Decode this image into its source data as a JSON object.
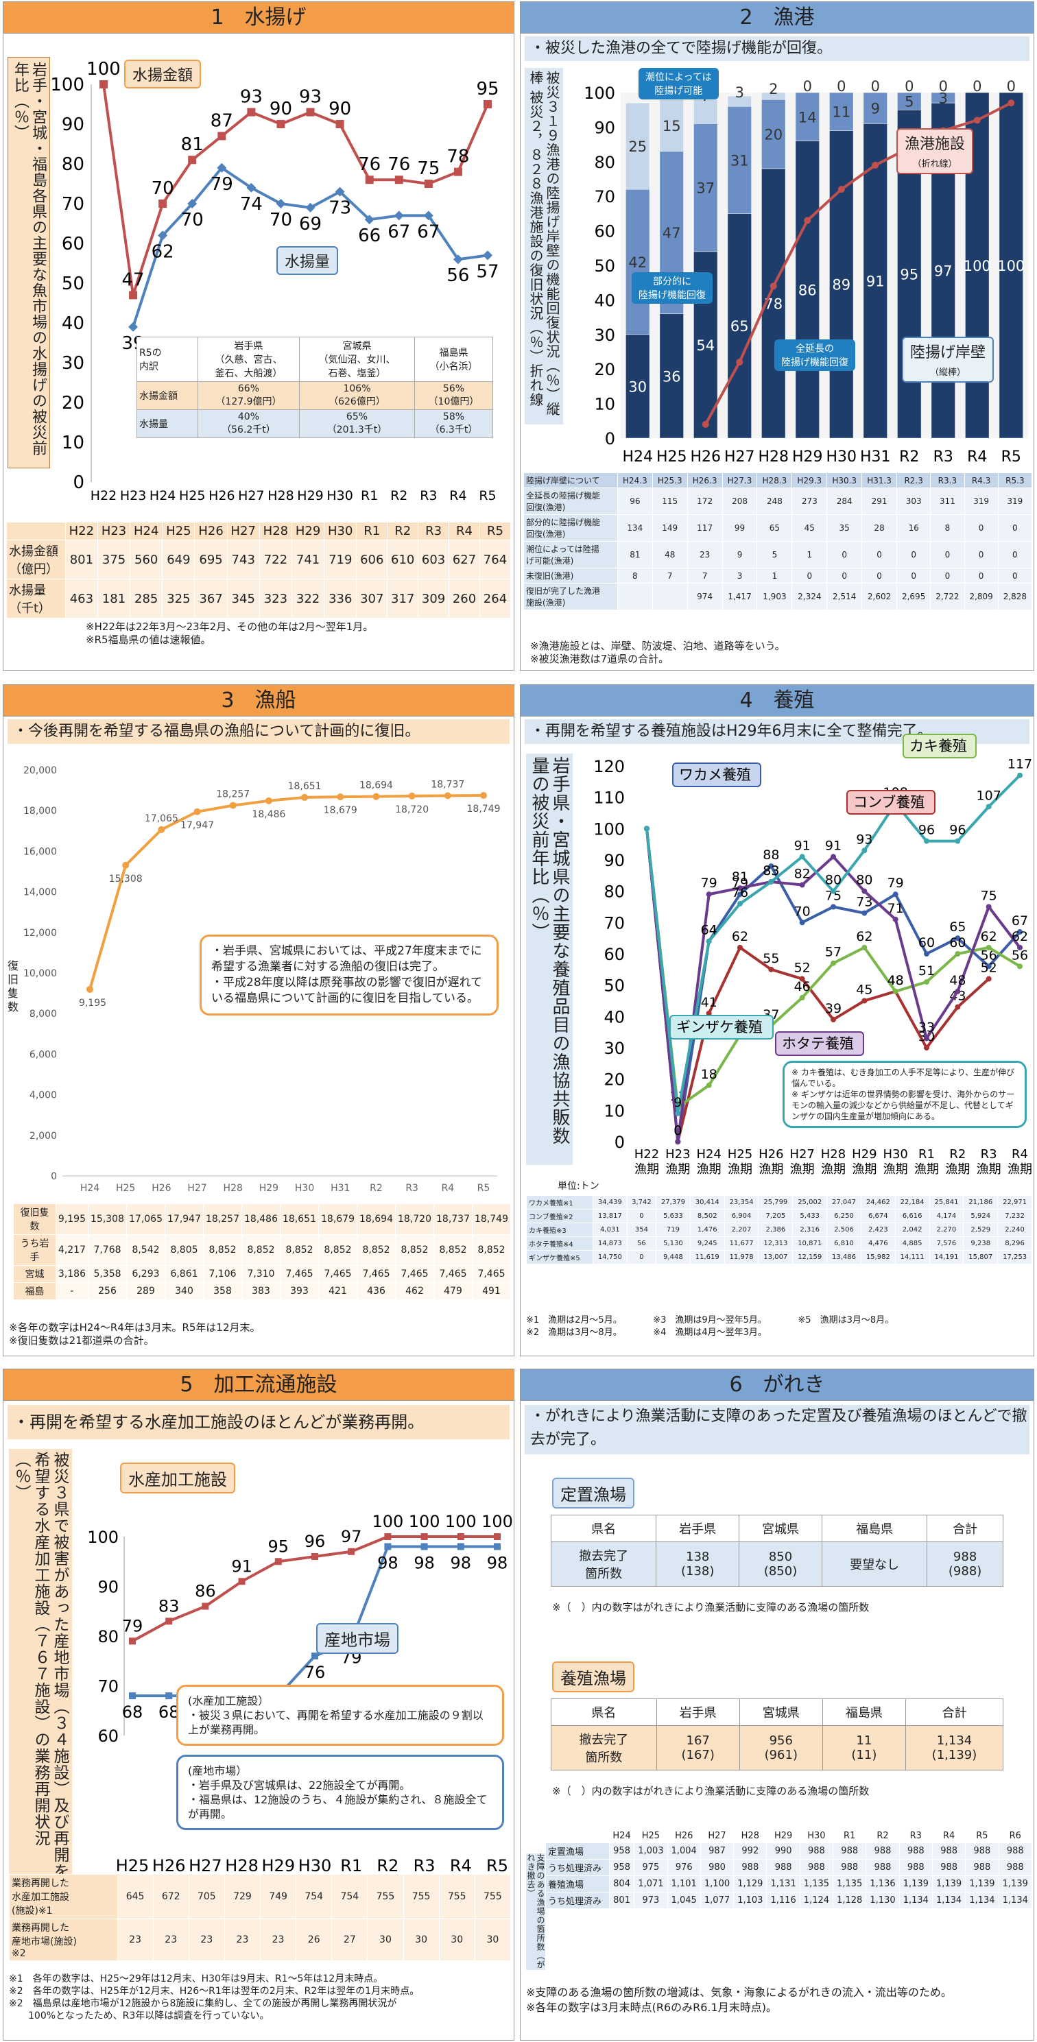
{
  "p1": {
    "title": "1　水揚げ",
    "ylabel": "岩手・宮城・福島各県の主要な魚市場の水揚げの被災前年比（％）",
    "label_amount": "水揚金額",
    "label_volume": "水揚量",
    "chart_data": {
      "type": "line",
      "x": [
        "H22",
        "H23",
        "H24",
        "H25",
        "H26",
        "H27",
        "H28",
        "H29",
        "H30",
        "R1",
        "R2",
        "R3",
        "R4",
        "R5"
      ],
      "ylim": [
        0,
        100
      ],
      "series": [
        {
          "name": "水揚金額",
          "color": "#c0504d",
          "values": [
            100,
            47,
            70,
            81,
            87,
            93,
            90,
            93,
            90,
            76,
            76,
            75,
            78,
            95
          ]
        },
        {
          "name": "水揚量",
          "color": "#4f81bd",
          "values": [
            null,
            39,
            62,
            70,
            79,
            74,
            70,
            69,
            73,
            66,
            67,
            67,
            56,
            57
          ]
        }
      ]
    },
    "inner_table": {
      "rows": [
        [
          "R5の\n内訳",
          "岩手県\n（久慈、宮古、\n釜石、大船渡）",
          "宮城県\n（気仙沼、女川、\n石巻、塩釜）",
          "福島県\n（小名浜）"
        ],
        [
          "水揚金額",
          "66%\n（127.9億円）",
          "106%\n（626億円）",
          "56%\n（10億円）"
        ],
        [
          "水揚量",
          "40%\n（56.2千t）",
          "65%\n（201.3千t）",
          "58%\n（6.3千t）"
        ]
      ]
    },
    "table": {
      "header": [
        "",
        "H22",
        "H23",
        "H24",
        "H25",
        "H26",
        "H27",
        "H28",
        "H29",
        "H30",
        "R1",
        "R2",
        "R3",
        "R4",
        "R5"
      ],
      "rows": [
        [
          "水揚金額\n（億円）",
          "801",
          "375",
          "560",
          "649",
          "695",
          "743",
          "722",
          "741",
          "719",
          "606",
          "610",
          "603",
          "627",
          "764"
        ],
        [
          "水揚量\n（千t）",
          "463",
          "181",
          "285",
          "325",
          "367",
          "345",
          "323",
          "322",
          "336",
          "307",
          "317",
          "309",
          "260",
          "264"
        ]
      ]
    },
    "notes": "※H22年は22年3月〜23年2月、その他の年は2月〜翌年1月。\n※R5福島県の値は速報値。"
  },
  "p2": {
    "title": "2　漁港",
    "sub": "・被災した漁港の全てで陸揚げ機能が回復。",
    "ylabel": "被災３１９漁港の陸揚げ岸壁の機能回復状況（％）縦棒\n被災２，８２８漁港施設の復旧状況（％）折れ線",
    "lab_tide": "潮位によっては\n陸揚げ可能",
    "lab_partial": "部分的に\n陸揚げ機能回復",
    "lab_full": "全延長の\n陸揚げ機能回復",
    "lab_fac": "漁港施設",
    "lab_fac_sub": "（折れ線）",
    "lab_quay": "陸揚げ岸壁",
    "lab_quay_sub": "（縦棒）",
    "chart_data": {
      "type": "bar",
      "categories": [
        "H24",
        "H25",
        "H26",
        "H27",
        "H28",
        "H29",
        "H30",
        "H31",
        "R2",
        "R3",
        "R4",
        "R5"
      ],
      "ylim": [
        0,
        100
      ],
      "series": [
        {
          "name": "全延長の陸揚げ機能回復",
          "color": "#1f3d6b",
          "values": [
            30,
            36,
            54,
            65,
            78,
            86,
            89,
            91,
            95,
            97,
            100,
            100
          ]
        },
        {
          "name": "部分的に陸揚げ機能回復",
          "color": "#6b8fc4",
          "values": [
            42,
            47,
            37,
            31,
            20,
            14,
            11,
            9,
            5,
            3,
            0,
            0
          ]
        },
        {
          "name": "潮位によっては陸揚げ可能",
          "color": "#c6d6ea",
          "values": [
            25,
            15,
            7,
            3,
            2,
            0,
            0,
            0,
            0,
            0,
            0,
            0
          ]
        },
        {
          "name": "漁港施設",
          "color": "#c0504d",
          "values": [
            null,
            null,
            4,
            22,
            44,
            63,
            72,
            79,
            84,
            89,
            92,
            97
          ]
        }
      ]
    },
    "table": {
      "header": [
        "陸揚げ岸壁について",
        "H24.3",
        "H25.3",
        "H26.3",
        "H27.3",
        "H28.3",
        "H29.3",
        "H30.3",
        "H31.3",
        "R2.3",
        "R3.3",
        "R4.3",
        "R5.3"
      ],
      "rows": [
        [
          "全延長の陸揚げ機能\n回復(漁港)",
          "96",
          "115",
          "172",
          "208",
          "248",
          "273",
          "284",
          "291",
          "303",
          "311",
          "319",
          "319"
        ],
        [
          "部分的に陸揚げ機能\n回復(漁港)",
          "134",
          "149",
          "117",
          "99",
          "65",
          "45",
          "35",
          "28",
          "16",
          "8",
          "0",
          "0"
        ],
        [
          "潮位によっては陸揚\nげ可能(漁港)",
          "81",
          "48",
          "23",
          "9",
          "5",
          "1",
          "0",
          "0",
          "0",
          "0",
          "0",
          "0"
        ],
        [
          "未復旧(漁港)",
          "8",
          "7",
          "7",
          "3",
          "1",
          "0",
          "0",
          "0",
          "0",
          "0",
          "0",
          "0"
        ],
        [
          "復旧が完了した漁港\n施設(漁港)",
          "",
          "",
          "974",
          "1,417",
          "1,903",
          "2,324",
          "2,514",
          "2,602",
          "2,695",
          "2,722",
          "2,809",
          "2,828"
        ]
      ]
    },
    "notes": "※漁港施設とは、岸壁、防波堤、泊地、道路等をいう。\n※被災漁港数は7道県の合計。"
  },
  "p3": {
    "title": "3　漁船",
    "sub": "・今後再開を希望する福島県の漁船について計画的に復旧。",
    "ylabel": "復旧隻数",
    "callout": "・岩手県、宮城県においては、平成27年度末までに希望する漁業者に対する漁船の復旧は完了。\n・平成28年度以降は原発事故の影響で復旧が遅れている福島県について計画的に復旧を目指している。",
    "chart_data": {
      "type": "line",
      "x": [
        "H24",
        "H25",
        "H26",
        "H27",
        "H28",
        "H29",
        "H30",
        "H31",
        "R2",
        "R3",
        "R4",
        "R5"
      ],
      "ylim": [
        0,
        20000
      ],
      "yticks": [
        "0",
        "2,000",
        "4,000",
        "6,000",
        "8,000",
        "10,000",
        "12,000",
        "14,000",
        "16,000",
        "18,000",
        "20,000"
      ],
      "series": [
        {
          "color": "#f0a040",
          "values": [
            9195,
            15308,
            17065,
            17947,
            18257,
            18486,
            18651,
            18679,
            18694,
            18720,
            18737,
            18749
          ]
        }
      ],
      "labels": [
        "9,195",
        "15,308",
        "17,065",
        "17,947",
        "18,257",
        "18,486",
        "18,651",
        "18,679",
        "18,694",
        "18,720",
        "18,737",
        "18,749"
      ]
    },
    "table": {
      "rows": [
        [
          "復旧隻数",
          "9,195",
          "15,308",
          "17,065",
          "17,947",
          "18,257",
          "18,486",
          "18,651",
          "18,679",
          "18,694",
          "18,720",
          "18,737",
          "18,749"
        ],
        [
          "うち岩手",
          "4,217",
          "7,768",
          "8,542",
          "8,805",
          "8,852",
          "8,852",
          "8,852",
          "8,852",
          "8,852",
          "8,852",
          "8,852",
          "8,852"
        ],
        [
          "宮城",
          "3,186",
          "5,358",
          "6,293",
          "6,861",
          "7,106",
          "7,310",
          "7,465",
          "7,465",
          "7,465",
          "7,465",
          "7,465",
          "7,465"
        ],
        [
          "福島",
          "-",
          "256",
          "289",
          "340",
          "358",
          "383",
          "393",
          "421",
          "436",
          "462",
          "479",
          "491"
        ]
      ]
    },
    "notes": "※各年の数字はH24〜R4年は3月末。R5年は12月末。\n※復旧隻数は21都道県の合計。"
  },
  "p4": {
    "title": "4　養殖",
    "sub": "・再開を希望する養殖施設はH29年6月末に全て整備完了。",
    "ylabel": "岩手県・宮城県の主要な養殖品目の漁協共販数量の被災前年比（％）",
    "chart_data": {
      "type": "line",
      "x": [
        "H22漁期",
        "H23漁期",
        "H24漁期",
        "H25漁期",
        "H26漁期",
        "H27漁期",
        "H28漁期",
        "H29漁期",
        "H30漁期",
        "R1漁期",
        "R2漁期",
        "R3漁期",
        "R4漁期"
      ],
      "ylim": [
        0,
        120
      ],
      "series": [
        {
          "name": "ワカメ養殖",
          "color": "#3a5fa8",
          "values": [
            100,
            0,
            64,
            79,
            88,
            70,
            75,
            73,
            79,
            60,
            65,
            56,
            67
          ]
        },
        {
          "name": "コンブ養殖",
          "color": "#a83232",
          "values": [
            100,
            0,
            41,
            62,
            55,
            52,
            39,
            45,
            48,
            30,
            43,
            52,
            null
          ]
        },
        {
          "name": "カキ養殖",
          "color": "#7ab648",
          "values": [
            100,
            11,
            18,
            34,
            37,
            46,
            57,
            62,
            48,
            51,
            60,
            62,
            56
          ]
        },
        {
          "name": "ホタテ養殖",
          "color": "#6a3b8c",
          "values": [
            100,
            0,
            79,
            81,
            83,
            82,
            91,
            80,
            71,
            33,
            48,
            75,
            62
          ]
        },
        {
          "name": "ギンザケ養殖",
          "color": "#3aa6b0",
          "values": [
            100,
            9,
            64,
            76,
            83,
            91,
            80,
            93,
            108,
            96,
            96,
            107,
            117
          ]
        }
      ]
    },
    "box": "※ カキ養殖は、むき身加工の人手不足等により、生産が伸び悩んでいる。\n※ ギンザケは近年の世界情勢の影響を受け、海外からのサーモンの輸入量の減少などから供給量が不足し、代替としてギンザケの国内生産量が増加傾向にある。",
    "unit": "単位:トン",
    "table": {
      "rows": [
        [
          "ワカメ養殖※1",
          "34,439",
          "3,742",
          "27,379",
          "30,414",
          "23,354",
          "25,799",
          "25,002",
          "27,047",
          "24,462",
          "22,184",
          "25,841",
          "21,186",
          "22,971"
        ],
        [
          "コンブ養殖※2",
          "13,817",
          "0",
          "5,633",
          "8,502",
          "6,904",
          "7,205",
          "5,433",
          "6,250",
          "6,674",
          "6,616",
          "4,174",
          "5,924",
          "7,232"
        ],
        [
          "カキ養殖※3",
          "4,031",
          "354",
          "719",
          "1,476",
          "2,207",
          "2,386",
          "2,316",
          "2,506",
          "2,423",
          "2,042",
          "2,270",
          "2,529",
          "2,240"
        ],
        [
          "ホタテ養殖※4",
          "14,873",
          "56",
          "5,130",
          "9,245",
          "11,677",
          "12,313",
          "10,871",
          "6,810",
          "4,476",
          "4,885",
          "7,576",
          "9,238",
          "8,296"
        ],
        [
          "ギンザケ養殖※5",
          "14,750",
          "0",
          "9,448",
          "11,619",
          "11,978",
          "13,007",
          "12,159",
          "13,486",
          "15,982",
          "14,111",
          "14,191",
          "15,807",
          "17,253"
        ]
      ]
    },
    "notes": "※1　漁期は2月〜5月。　　　　※3　漁期は9月〜翌年5月。　　　　※5　漁期は3月〜8月。\n※2　漁期は3月〜8月。　　　　※4　漁期は4月〜翌年3月。"
  },
  "p5": {
    "title": "5　加工流通施設",
    "sub": "・再開を希望する水産加工施設のほとんどが業務再開。",
    "ylabel": "被災３県で被害があった産地市場（３４施設）及び再開を希望する水産加工施設（７６７施設）の業務再開状況（％）",
    "label_proc": "水産加工施設",
    "label_market": "産地市場",
    "callout1": "(水産加工施設）\n・被災３県において、再開を希望する水産加工施設の９割以上が業務再開。",
    "callout2": "(産地市場）\n・岩手県及び宮城県は、22施設全てが再開。\n・福島県は、12施設のうち、４施設が集約され、８施設全てが再開。",
    "chart_data": {
      "type": "line",
      "x": [
        "H25",
        "H26",
        "H27",
        "H28",
        "H29",
        "H30",
        "R1",
        "R2",
        "R3",
        "R4",
        "R5"
      ],
      "ylim": [
        60,
        100
      ],
      "series": [
        {
          "name": "水産加工施設",
          "color": "#c0504d",
          "values": [
            79,
            83,
            86,
            91,
            95,
            96,
            97,
            100,
            100,
            100,
            100
          ]
        },
        {
          "name": "産地市場",
          "color": "#4f81bd",
          "values": [
            68,
            68,
            68,
            68,
            68,
            76,
            79,
            98,
            98,
            98,
            98
          ]
        }
      ]
    },
    "table": {
      "rows": [
        [
          "業務再開した\n水産加工施設\n(施設)※1",
          "645",
          "672",
          "705",
          "729",
          "749",
          "754",
          "754",
          "755",
          "755",
          "755",
          "755"
        ],
        [
          "業務再開した\n産地市場(施設)\n※2",
          "23",
          "23",
          "23",
          "23",
          "23",
          "26",
          "27",
          "30",
          "30",
          "30",
          "30"
        ]
      ]
    },
    "notes": "※1　各年の数字は、H25〜29年は12月末、H30年は9月末、R1〜5年は12月末時点。\n※2　各年の数字は、H25年が12月末、H26〜R1年は翌年の2月末、R2年は翌年の1月末時点。\n※2　福島県は産地市場が12施設から8施設に集約し、全ての施設が再開し業務再開状況が\n　　100%となったため、R3年以降は調査を行っていない。"
  },
  "p6": {
    "title": "6　がれき",
    "sub": "・がれきにより漁業活動に支障のあった定置及び養殖漁場のほとんどで撤去が完了。",
    "fixed_label": "定置漁場",
    "aqua_label": "養殖漁場",
    "header": [
      "県名",
      "岩手県",
      "宮城県",
      "福島県",
      "合計"
    ],
    "fixed_row": [
      "撤去完了\n箇所数",
      "138\n(138)",
      "850\n(850)",
      "要望なし",
      "988\n(988)"
    ],
    "aqua_row": [
      "撤去完了\n箇所数",
      "167\n(167)",
      "956\n(961)",
      "11\n(11)",
      "1,134\n(1,139)"
    ],
    "paren_note": "※（　）内の数字はがれきにより漁業活動に支障のある漁場の箇所数",
    "side": "支障のある漁場の箇所数（がれき撤去）",
    "years": [
      "H24",
      "H25",
      "H26",
      "H27",
      "H28",
      "H29",
      "H30",
      "R1",
      "R2",
      "R3",
      "R4",
      "R5",
      "R6"
    ],
    "rows": [
      [
        "定置漁場",
        "958",
        "1,003",
        "1,004",
        "987",
        "992",
        "990",
        "988",
        "988",
        "988",
        "988",
        "988",
        "988",
        "988"
      ],
      [
        "うち処理済み",
        "958",
        "975",
        "976",
        "980",
        "988",
        "988",
        "988",
        "988",
        "988",
        "988",
        "988",
        "988",
        "988"
      ],
      [
        "養殖漁場",
        "804",
        "1,071",
        "1,101",
        "1,100",
        "1,129",
        "1,131",
        "1,135",
        "1,135",
        "1,136",
        "1,139",
        "1,139",
        "1,139",
        "1,139"
      ],
      [
        "うち処理済み",
        "801",
        "973",
        "1,045",
        "1,077",
        "1,103",
        "1,116",
        "1,124",
        "1,128",
        "1,130",
        "1,134",
        "1,134",
        "1,134",
        "1,134"
      ]
    ],
    "notes": "※支障のある漁場の箇所数の増減は、気象・海象によるがれきの流入・流出等のため。\n※各年の数字は3月末時点(R6のみR6.1月末時点)。"
  }
}
